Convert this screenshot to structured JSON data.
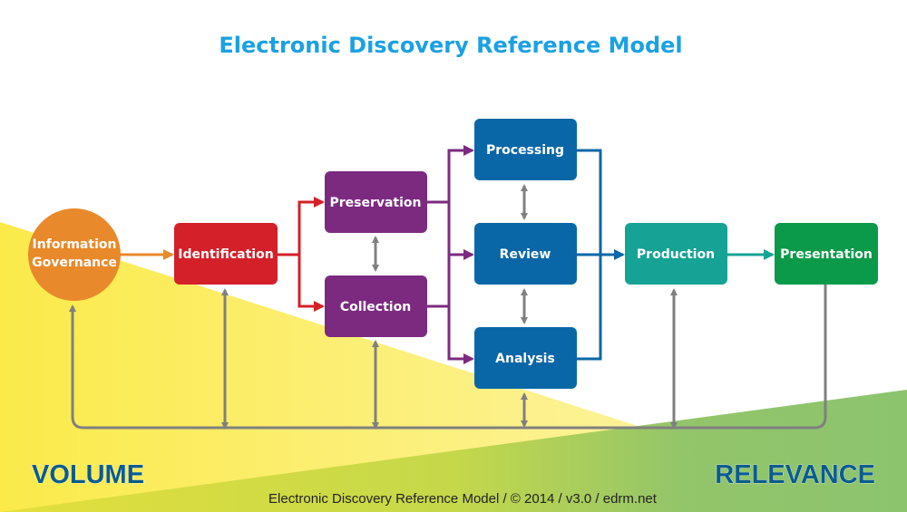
{
  "title": "Electronic Discovery Reference Model",
  "nodes": {
    "governance": [
      "Information",
      "Governance"
    ],
    "identification": "Identification",
    "preservation": "Preservation",
    "collection": "Collection",
    "processing": "Processing",
    "review": "Review",
    "analysis": "Analysis",
    "production": "Production",
    "presentation": "Presentation"
  },
  "axis": {
    "left": "VOLUME",
    "right": "RELEVANCE"
  },
  "footer": "Electronic Discovery Reference Model / © 2014 / v3.0 / edrm.net",
  "colors": {
    "governance": "#E8892B",
    "identification": "#D42029",
    "preservation_collection": "#7C2A80",
    "processing_review_analysis": "#0A67A7",
    "production": "#16A395",
    "presentation": "#0B9A49",
    "title": "#1BA1E2",
    "connector": "#808080"
  }
}
